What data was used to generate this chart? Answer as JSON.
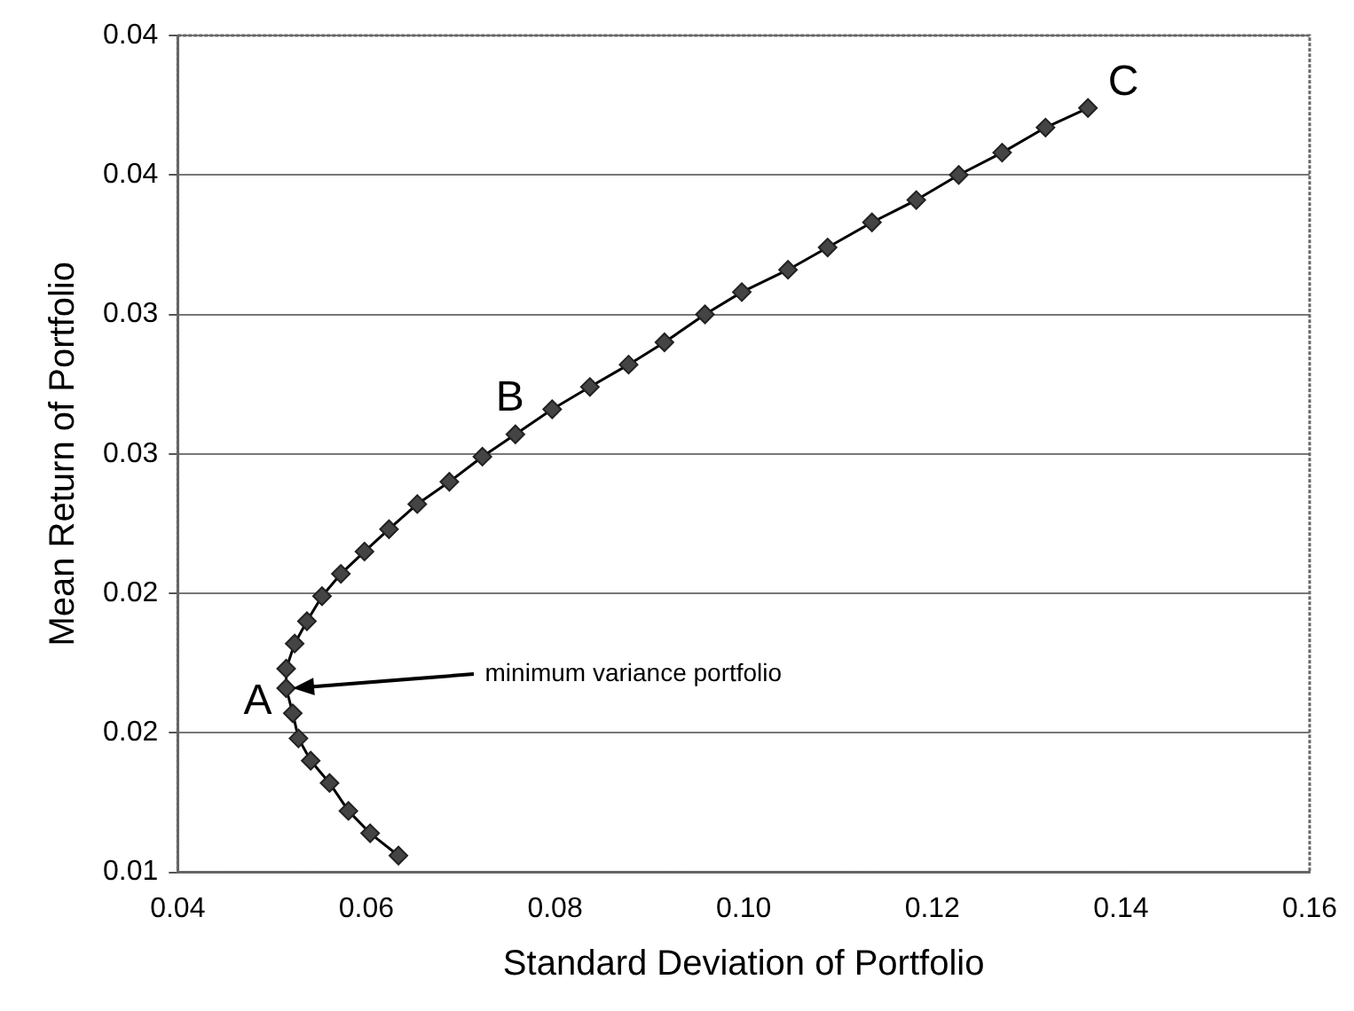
{
  "chart_data": {
    "type": "line",
    "xlabel": "Standard Deviation of Portfolio",
    "ylabel": "Mean Return of Portfolio",
    "series": [
      {
        "color": "#444444",
        "x": [
          0.0634,
          0.0604,
          0.0581,
          0.0561,
          0.0541,
          0.0528,
          0.0522,
          0.0515,
          0.0515,
          0.0524,
          0.0537,
          0.0553,
          0.0573,
          0.0598,
          0.0624,
          0.0654,
          0.0688,
          0.0723,
          0.0758,
          0.0797,
          0.0837,
          0.0878,
          0.0916,
          0.0959,
          0.0998,
          0.1047,
          0.1089,
          0.1136,
          0.1183,
          0.1228,
          0.1274,
          0.132,
          0.1365
        ],
        "values": [
          0.0106,
          0.0114,
          0.0122,
          0.0132,
          0.014,
          0.0148,
          0.0157,
          0.0166,
          0.0173,
          0.0182,
          0.019,
          0.0199,
          0.0207,
          0.0215,
          0.0223,
          0.0232,
          0.024,
          0.0249,
          0.0257,
          0.0266,
          0.0274,
          0.0282,
          0.029,
          0.03,
          0.0308,
          0.0316,
          0.0324,
          0.0333,
          0.0341,
          0.035,
          0.0358,
          0.0367,
          0.0374
        ]
      }
    ],
    "xlim": [
      0.04,
      0.16
    ],
    "xticks": [
      {
        "value": 0.04,
        "label": "0.04"
      },
      {
        "value": 0.06,
        "label": "0.06"
      },
      {
        "value": 0.08,
        "label": "0.08"
      },
      {
        "value": 0.1,
        "label": "0.10"
      },
      {
        "value": 0.12,
        "label": "0.12"
      },
      {
        "value": 0.14,
        "label": "0.14"
      },
      {
        "value": 0.16,
        "label": "0.16"
      }
    ],
    "ylim": [
      0.01,
      0.04
    ],
    "yticks": [
      0.01,
      {
        "value": 0.015,
        "label": "0.02"
      },
      0.02,
      {
        "value": 0.025,
        "label": "0.03"
      },
      0.03,
      {
        "value": 0.035,
        "label": "0.04"
      },
      0.04
    ],
    "annotations": [
      {
        "text": "A",
        "x": 0.0515,
        "y": 0.0166
      },
      {
        "text": "B",
        "x": 0.0758,
        "y": 0.0257
      },
      {
        "text": "C",
        "x": 0.1365,
        "y": 0.0374
      },
      "minimum variance portfolio"
    ],
    "grid": "y",
    "marker": "diamond",
    "line_style": "solid",
    "legend": false
  }
}
